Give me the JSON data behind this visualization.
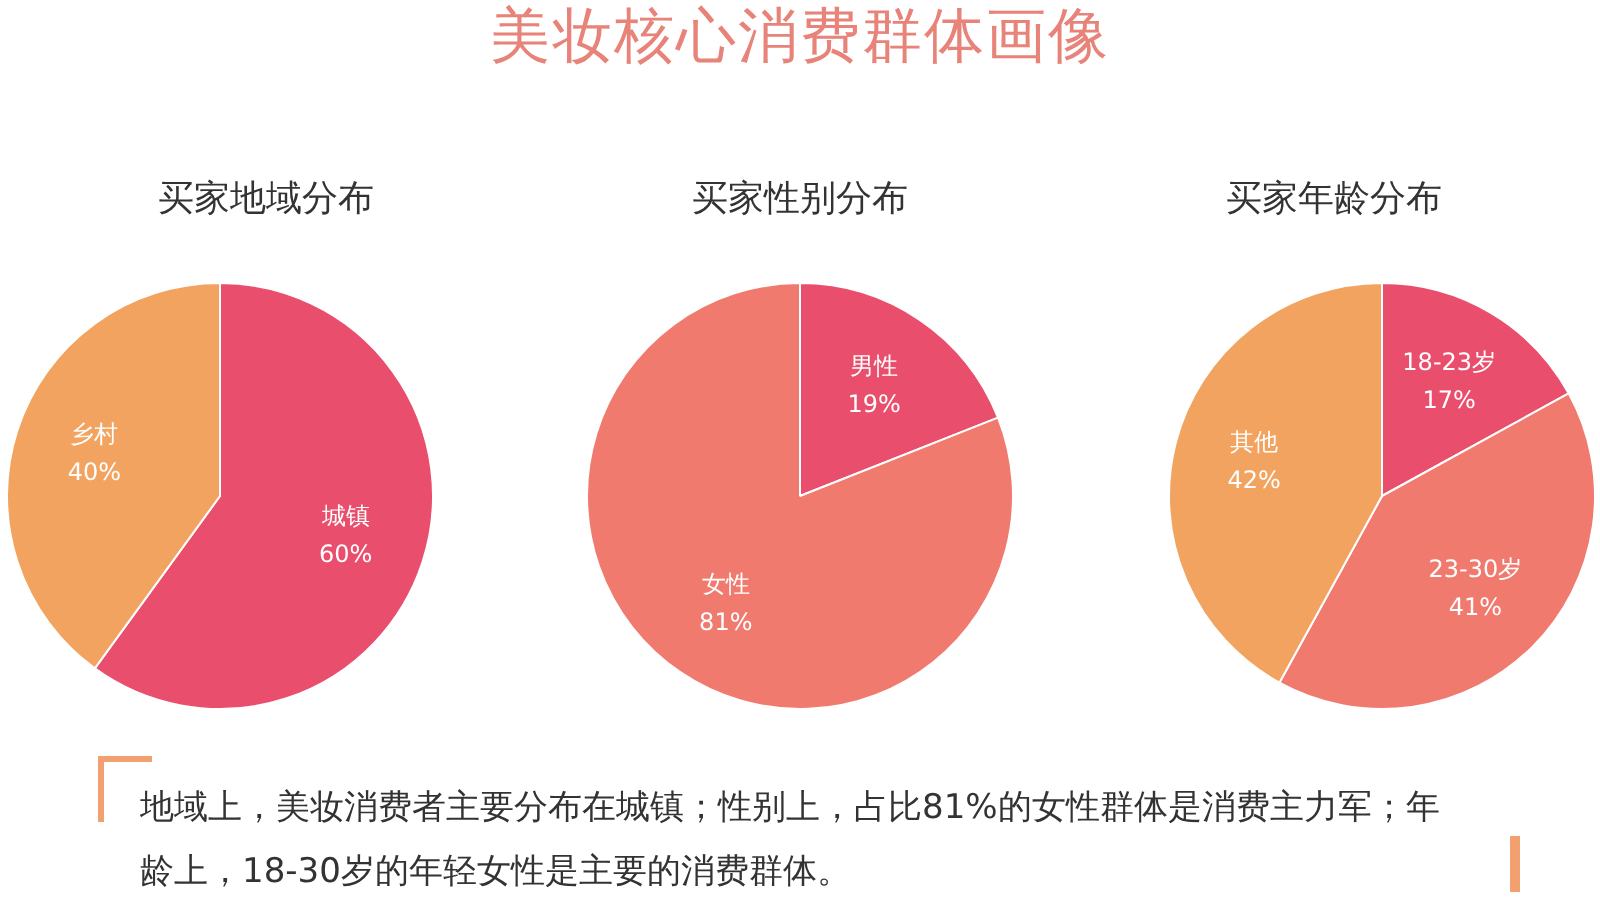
{
  "chart_data": [
    {
      "type": "other",
      "title": "美妆核心消费群体画像"
    },
    {
      "type": "pie",
      "title": "买家地域分布",
      "categories": [
        "城镇",
        "乡村"
      ],
      "values": [
        60,
        40
      ],
      "colors": [
        "#e94f6c",
        "#f2a35f"
      ],
      "value_labels": [
        "60%",
        "40%"
      ]
    },
    {
      "type": "pie",
      "title": "买家性别分布",
      "categories": [
        "男性",
        "女性"
      ],
      "values": [
        19,
        81
      ],
      "colors": [
        "#e94f6c",
        "#f17a6f"
      ],
      "value_labels": [
        "19%",
        "81%"
      ]
    },
    {
      "type": "pie",
      "title": "买家年龄分布",
      "categories": [
        "18-23岁",
        "23-30岁",
        "其他"
      ],
      "values": [
        17,
        41,
        42
      ],
      "colors": [
        "#e94f6c",
        "#f17a6f",
        "#f2a35f"
      ],
      "value_labels": [
        "17%",
        "41%",
        "42%"
      ]
    },
    {
      "type": "other",
      "annotations": [
        "地域上，美妆消费者主要分布在城镇；性别上，占比81%的女性群体是消费主力军；年龄上，18-30岁的年轻女性是主要的消费群体。"
      ]
    }
  ]
}
